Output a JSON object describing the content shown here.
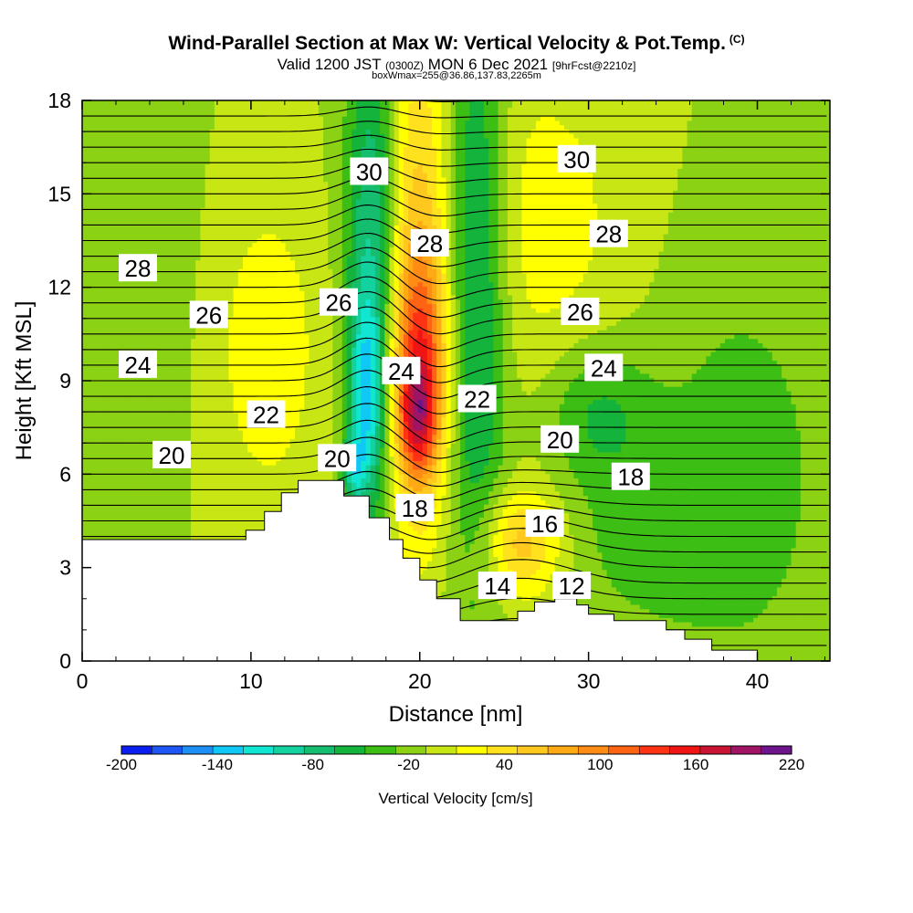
{
  "header": {
    "title": "Wind-Parallel Section at Max W: Vertical Velocity & Pot.Temp.",
    "title_mark": "(C)",
    "subtitle_valid": "Valid 1200 JST",
    "subtitle_utc": "(0300Z)",
    "subtitle_date": "MON 6 Dec 2021",
    "subtitle_fcst": "[9hrFcst@2210z]",
    "subtitle2": "boxWmax=255@36.86,137.83,2265m"
  },
  "chart_data": {
    "type": "contour",
    "xlabel": "Distance [nm]",
    "ylabel": "Height [Kft MSL]",
    "xlim": [
      0,
      44.3
    ],
    "ylim": [
      0,
      18
    ],
    "x_ticks": [
      0,
      10,
      20,
      30,
      40
    ],
    "y_ticks": [
      0,
      3,
      6,
      9,
      12,
      15,
      18
    ],
    "colorbar": {
      "label": "Vertical Velocity [cm/s]",
      "min": -200,
      "max": 220,
      "step": 20,
      "tick_labels": [
        "-200",
        "-140",
        "-80",
        "-20",
        "40",
        "100",
        "160",
        "220"
      ],
      "colors": [
        "#0a1ef0",
        "#1e55f5",
        "#1e90f5",
        "#10c8f5",
        "#10e6d2",
        "#14d2a0",
        "#14be6e",
        "#14b43c",
        "#3cbe14",
        "#8cd214",
        "#c8e614",
        "#ffff00",
        "#ffe11e",
        "#ffc81e",
        "#ffaa14",
        "#ff8c14",
        "#ff6414",
        "#ff3214",
        "#f01414",
        "#c81432",
        "#a01464",
        "#6e148c"
      ]
    },
    "terrain": [
      [
        0,
        3.9
      ],
      [
        9.7,
        3.9
      ],
      [
        9.7,
        4.2
      ],
      [
        10.8,
        4.2
      ],
      [
        10.8,
        4.8
      ],
      [
        11.8,
        4.8
      ],
      [
        11.8,
        5.4
      ],
      [
        12.8,
        5.4
      ],
      [
        12.8,
        5.8
      ],
      [
        15.5,
        5.8
      ],
      [
        15.5,
        5.3
      ],
      [
        17,
        5.3
      ],
      [
        17,
        4.6
      ],
      [
        18.2,
        4.6
      ],
      [
        18.2,
        3.9
      ],
      [
        19,
        3.9
      ],
      [
        19,
        3.3
      ],
      [
        20,
        3.3
      ],
      [
        20,
        2.6
      ],
      [
        21,
        2.6
      ],
      [
        21,
        2
      ],
      [
        22.4,
        2
      ],
      [
        22.4,
        1.3
      ],
      [
        25.8,
        1.3
      ],
      [
        25.8,
        1.6
      ],
      [
        26.8,
        1.6
      ],
      [
        26.8,
        1.9
      ],
      [
        28,
        1.9
      ],
      [
        28,
        2
      ],
      [
        29.3,
        2
      ],
      [
        29.3,
        1.8
      ],
      [
        30,
        1.8
      ],
      [
        30,
        1.5
      ],
      [
        31.5,
        1.5
      ],
      [
        31.5,
        1.3
      ],
      [
        34.6,
        1.3
      ],
      [
        34.6,
        1
      ],
      [
        35.7,
        1
      ],
      [
        35.7,
        0.7
      ],
      [
        37.3,
        0.7
      ],
      [
        37.3,
        0.35
      ],
      [
        40,
        0.35
      ],
      [
        40,
        0
      ],
      [
        44.3,
        0
      ]
    ],
    "velocity_features": [
      {
        "x": 17.2,
        "y": 13,
        "sx": 1.1,
        "sy": 6,
        "w": -90
      },
      {
        "x": 16.8,
        "y": 8.5,
        "sx": 0.7,
        "sy": 2.2,
        "w": -80
      },
      {
        "x": 16.1,
        "y": 6.2,
        "sx": 0.45,
        "sy": 0.7,
        "w": -70
      },
      {
        "x": 19.8,
        "y": 13,
        "sx": 1.5,
        "sy": 6,
        "w": 65
      },
      {
        "x": 20,
        "y": 9,
        "sx": 1.1,
        "sy": 2.6,
        "w": 120
      },
      {
        "x": 19.8,
        "y": 7.8,
        "sx": 0.75,
        "sy": 1.1,
        "w": 70
      },
      {
        "x": 23.3,
        "y": 12.5,
        "sx": 1.3,
        "sy": 7,
        "w": -80
      },
      {
        "x": 30.5,
        "y": 8,
        "sx": 2.2,
        "sy": 1.6,
        "w": -45
      },
      {
        "x": 27,
        "y": 14,
        "sx": 4,
        "sy": 4,
        "w": 30
      },
      {
        "x": 26,
        "y": 3.8,
        "sx": 1.6,
        "sy": 1.2,
        "w": 70
      },
      {
        "x": 11,
        "y": 10,
        "sx": 2.2,
        "sy": 3.5,
        "w": 35
      },
      {
        "x": 3,
        "y": 13,
        "sx": 2.2,
        "sy": 5,
        "w": -20
      },
      {
        "x": 39,
        "y": 6,
        "sx": 4,
        "sy": 5,
        "w": -30
      },
      {
        "x": 33,
        "y": 4,
        "sx": 3,
        "sy": 2,
        "w": -25
      }
    ],
    "theta_contours": [
      {
        "level": 12,
        "label": "12",
        "x": 29,
        "y": 2.4
      },
      {
        "level": 14,
        "label": "14",
        "x": 24.6,
        "y": 2.4
      },
      {
        "level": 16,
        "label": "16",
        "x": 27.4,
        "y": 4.4
      },
      {
        "level": 18,
        "label": "18",
        "x": 19.7,
        "y": 4.9
      },
      {
        "level": 18,
        "label": "18",
        "x": 32.5,
        "y": 5.9
      },
      {
        "level": 20,
        "label": "20",
        "x": 5.3,
        "y": 6.6
      },
      {
        "level": 20,
        "label": "20",
        "x": 15.1,
        "y": 6.5
      },
      {
        "level": 20,
        "label": "20",
        "x": 28.3,
        "y": 7.1
      },
      {
        "level": 22,
        "label": "22",
        "x": 10.9,
        "y": 7.9
      },
      {
        "level": 22,
        "label": "22",
        "x": 23.4,
        "y": 8.4
      },
      {
        "level": 24,
        "label": "24",
        "x": 3.3,
        "y": 9.5
      },
      {
        "level": 24,
        "label": "24",
        "x": 18.9,
        "y": 9.3
      },
      {
        "level": 24,
        "label": "24",
        "x": 30.9,
        "y": 9.4
      },
      {
        "level": 26,
        "label": "26",
        "x": 7.5,
        "y": 11.1
      },
      {
        "level": 26,
        "label": "26",
        "x": 15.2,
        "y": 11.5
      },
      {
        "level": 26,
        "label": "26",
        "x": 29.5,
        "y": 11.2
      },
      {
        "level": 28,
        "label": "28",
        "x": 3.3,
        "y": 12.6
      },
      {
        "level": 28,
        "label": "28",
        "x": 20.6,
        "y": 13.4
      },
      {
        "level": 28,
        "label": "28",
        "x": 31.2,
        "y": 13.7
      },
      {
        "level": 30,
        "label": "30",
        "x": 17,
        "y": 15.7
      },
      {
        "level": 30,
        "label": "30",
        "x": 29.3,
        "y": 16.1
      }
    ]
  }
}
